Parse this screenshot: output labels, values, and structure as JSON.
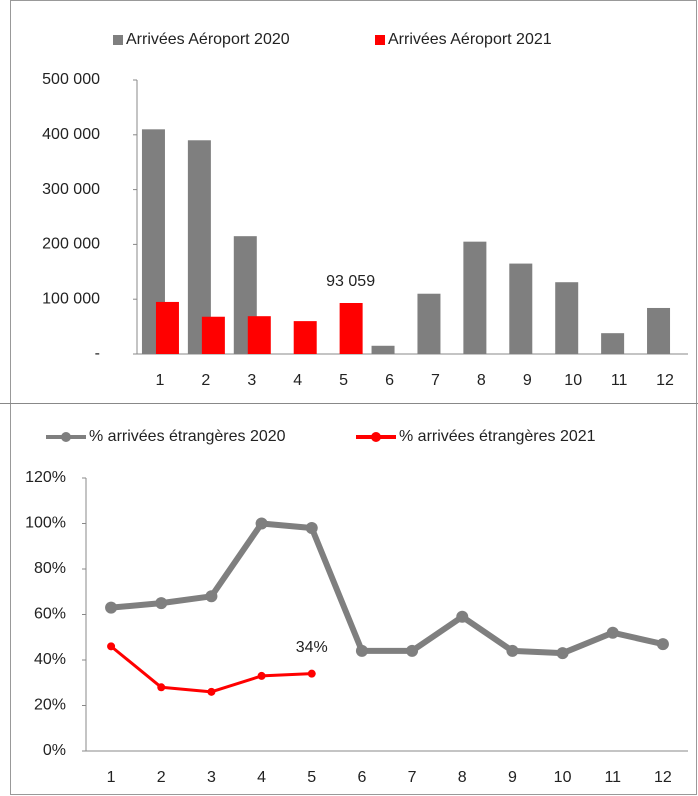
{
  "chart_data": [
    {
      "type": "bar",
      "legend": "top",
      "categories": [
        "1",
        "2",
        "3",
        "4",
        "5",
        "6",
        "7",
        "8",
        "9",
        "10",
        "11",
        "12"
      ],
      "series": [
        {
          "name": "Arrivées Aéroport 2020",
          "color": "#7f7f7f",
          "values": [
            410000,
            390000,
            215000,
            0,
            0,
            15000,
            110000,
            205000,
            165000,
            131000,
            38000,
            84000
          ]
        },
        {
          "name": "Arrivées Aéroport 2021",
          "color": "#ff0000",
          "values": [
            95000,
            68000,
            69000,
            60000,
            93059,
            null,
            null,
            null,
            null,
            null,
            null,
            null
          ],
          "value_labels": [
            null,
            null,
            null,
            null,
            "93 059",
            null,
            null,
            null,
            null,
            null,
            null,
            null
          ]
        }
      ],
      "ylim": [
        0,
        500000
      ],
      "yticks": [
        {
          "value": 0,
          "label": "-"
        },
        {
          "value": 100000,
          "label": "100 000"
        },
        {
          "value": 200000,
          "label": "200 000"
        },
        {
          "value": 300000,
          "label": "300 000"
        },
        {
          "value": 400000,
          "label": "400 000"
        },
        {
          "value": 500000,
          "label": "500 000"
        }
      ],
      "grid": false
    },
    {
      "type": "line",
      "legend": "top",
      "categories": [
        "1",
        "2",
        "3",
        "4",
        "5",
        "6",
        "7",
        "8",
        "9",
        "10",
        "11",
        "12"
      ],
      "series": [
        {
          "name": "% arrivées étrangères 2020",
          "color": "#7f7f7f",
          "values": [
            63,
            65,
            68,
            100,
            98,
            44,
            44,
            59,
            44,
            43,
            52,
            47
          ]
        },
        {
          "name": "% arrivées étrangères 2021",
          "color": "#ff0000",
          "values": [
            46,
            28,
            26,
            33,
            34,
            null,
            null,
            null,
            null,
            null,
            null,
            null
          ],
          "value_labels": [
            null,
            null,
            null,
            null,
            "34%",
            null,
            null,
            null,
            null,
            null,
            null,
            null
          ]
        }
      ],
      "ylim": [
        0,
        120
      ],
      "yticks": [
        {
          "value": 0,
          "label": "0%"
        },
        {
          "value": 20,
          "label": "20%"
        },
        {
          "value": 40,
          "label": "40%"
        },
        {
          "value": 60,
          "label": "60%"
        },
        {
          "value": 80,
          "label": "80%"
        },
        {
          "value": 100,
          "label": "100%"
        },
        {
          "value": 120,
          "label": "120%"
        }
      ],
      "grid": false
    }
  ]
}
